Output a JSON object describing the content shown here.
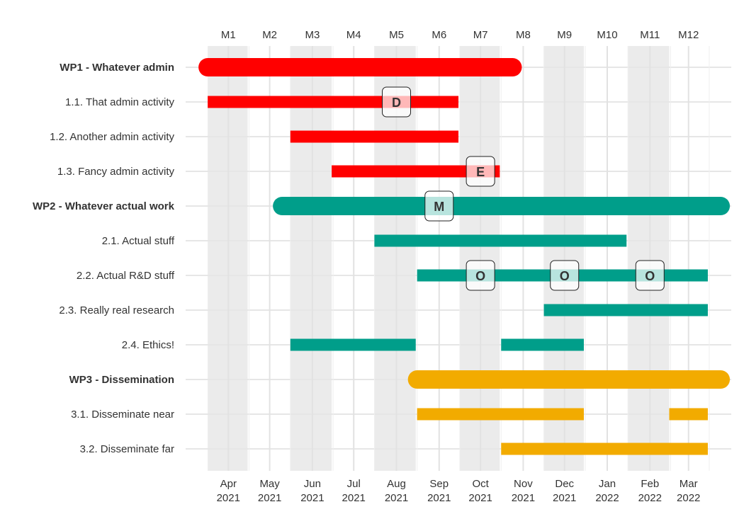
{
  "chart_data": {
    "type": "gantt",
    "project_months": [
      "M1",
      "M2",
      "M3",
      "M4",
      "M5",
      "M6",
      "M7",
      "M8",
      "M9",
      "M10",
      "M11",
      "M12"
    ],
    "calendar_months": [
      {
        "month": "Apr",
        "year": "2021",
        "date": "2021-04-01"
      },
      {
        "month": "May",
        "year": "2021",
        "date": "2021-05-01"
      },
      {
        "month": "Jun",
        "year": "2021",
        "date": "2021-06-01"
      },
      {
        "month": "Jul",
        "year": "2021",
        "date": "2021-07-01"
      },
      {
        "month": "Aug",
        "year": "2021",
        "date": "2021-08-01"
      },
      {
        "month": "Sep",
        "year": "2021",
        "date": "2021-09-01"
      },
      {
        "month": "Oct",
        "year": "2021",
        "date": "2021-10-01"
      },
      {
        "month": "Nov",
        "year": "2021",
        "date": "2021-11-01"
      },
      {
        "month": "Dec",
        "year": "2021",
        "date": "2021-12-01"
      },
      {
        "month": "Jan",
        "year": "2022",
        "date": "2022-01-01"
      },
      {
        "month": "Feb",
        "year": "2022",
        "date": "2022-02-01"
      },
      {
        "month": "Mar",
        "year": "2022",
        "date": "2022-03-01"
      }
    ],
    "xlim": [
      "2021-03-01",
      "2022-04-01"
    ],
    "colors": {
      "WP1": "#ff0000",
      "WP2": "#009e8a",
      "WP3": "#f2ab00"
    },
    "tasks": [
      {
        "label": "WP1 - Whatever admin",
        "wp": "WP1",
        "is_wp": true,
        "segments": [
          [
            "2021-03-17",
            "2021-10-31"
          ]
        ]
      },
      {
        "label": "1.1. That admin activity",
        "wp": "WP1",
        "is_wp": false,
        "segments": [
          [
            "2021-03-17",
            "2021-09-15"
          ]
        ]
      },
      {
        "label": "1.2. Another admin activity",
        "wp": "WP1",
        "is_wp": false,
        "segments": [
          [
            "2021-05-16",
            "2021-09-15"
          ]
        ]
      },
      {
        "label": "1.3. Fancy admin activity",
        "wp": "WP1",
        "is_wp": false,
        "segments": [
          [
            "2021-06-15",
            "2021-10-15"
          ]
        ]
      },
      {
        "label": "WP2 - Whatever actual work",
        "wp": "WP2",
        "is_wp": true,
        "segments": [
          [
            "2021-05-10",
            "2022-03-31"
          ]
        ]
      },
      {
        "label": "2.1. Actual stuff",
        "wp": "WP2",
        "is_wp": false,
        "segments": [
          [
            "2021-07-16",
            "2022-01-15"
          ]
        ]
      },
      {
        "label": "2.2. Actual R&D stuff",
        "wp": "WP2",
        "is_wp": false,
        "segments": [
          [
            "2021-08-16",
            "2022-03-15"
          ]
        ]
      },
      {
        "label": "2.3. Really real research",
        "wp": "WP2",
        "is_wp": false,
        "segments": [
          [
            "2021-11-16",
            "2022-03-15"
          ]
        ]
      },
      {
        "label": "2.4. Ethics!",
        "wp": "WP2",
        "is_wp": false,
        "segments": [
          [
            "2021-05-16",
            "2021-08-15"
          ],
          [
            "2021-10-16",
            "2021-12-15"
          ]
        ]
      },
      {
        "label": "WP3 - Dissemination",
        "wp": "WP3",
        "is_wp": true,
        "segments": [
          [
            "2021-08-16",
            "2022-03-31"
          ]
        ]
      },
      {
        "label": "3.1. Disseminate near",
        "wp": "WP3",
        "is_wp": false,
        "segments": [
          [
            "2021-08-16",
            "2021-12-15"
          ],
          [
            "2022-02-15",
            "2022-03-15"
          ]
        ]
      },
      {
        "label": "3.2. Disseminate far",
        "wp": "WP3",
        "is_wp": false,
        "segments": [
          [
            "2021-10-16",
            "2022-03-15"
          ]
        ]
      }
    ],
    "milestones": [
      {
        "letter": "D",
        "task_index": 1,
        "date": "2021-08-01"
      },
      {
        "letter": "E",
        "task_index": 3,
        "date": "2021-10-01"
      },
      {
        "letter": "M",
        "task_index": 4,
        "date": "2021-09-01"
      },
      {
        "letter": "O",
        "task_index": 6,
        "date": "2021-10-01"
      },
      {
        "letter": "O",
        "task_index": 6,
        "date": "2021-12-01"
      },
      {
        "letter": "O",
        "task_index": 6,
        "date": "2022-02-01"
      }
    ],
    "shaded_bands": [
      [
        "2021-03-17",
        "2021-04-15"
      ],
      [
        "2021-05-16",
        "2021-06-15"
      ],
      [
        "2021-07-16",
        "2021-08-15"
      ],
      [
        "2021-09-16",
        "2021-10-15"
      ],
      [
        "2021-11-16",
        "2021-12-15"
      ],
      [
        "2022-01-16",
        "2022-02-15"
      ]
    ],
    "grid": true
  }
}
